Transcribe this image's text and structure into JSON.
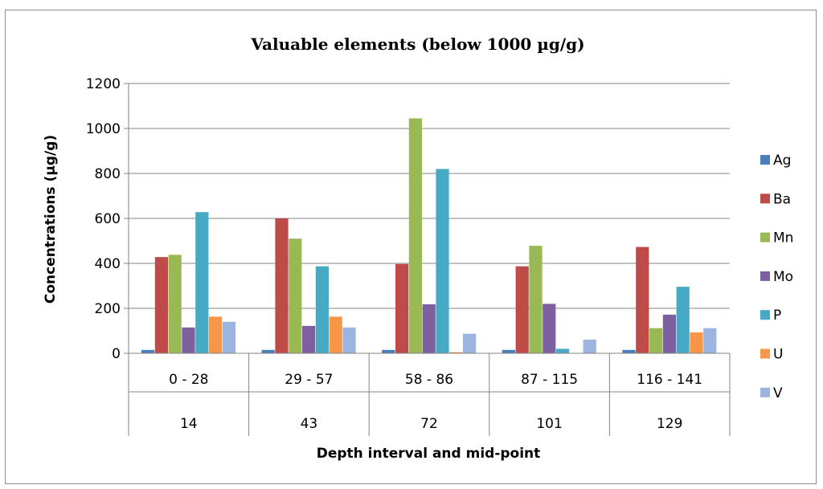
{
  "chart_data": {
    "type": "bar",
    "title": "Valuable elements (below 1000 µg/g)",
    "ylabel": "Concentrations (µg/g)",
    "xlabel": "Depth interval and mid-point",
    "ylim": [
      0,
      1200
    ],
    "yticks": [
      0,
      200,
      400,
      600,
      800,
      1000,
      1200
    ],
    "grid": true,
    "legend_position": "right",
    "categories": [
      "0 - 28",
      "29 - 57",
      "58 - 86",
      "87 - 115",
      "116 - 141"
    ],
    "midpoints": [
      "14",
      "43",
      "72",
      "101",
      "129"
    ],
    "series": [
      {
        "name": "Ag",
        "color": "#4a7ebb",
        "values": [
          15,
          15,
          15,
          15,
          15
        ]
      },
      {
        "name": "Ba",
        "color": "#be4b48",
        "values": [
          428,
          600,
          397,
          387,
          473
        ]
      },
      {
        "name": "Mn",
        "color": "#98b954",
        "values": [
          438,
          510,
          1045,
          478,
          112
        ]
      },
      {
        "name": "Mo",
        "color": "#7d60a0",
        "values": [
          115,
          122,
          218,
          220,
          172
        ]
      },
      {
        "name": "P",
        "color": "#46aac5",
        "values": [
          628,
          387,
          820,
          20,
          296
        ]
      },
      {
        "name": "U",
        "color": "#f79646",
        "values": [
          163,
          163,
          5,
          0,
          93
        ]
      },
      {
        "name": "V",
        "color": "#9cb4e0",
        "values": [
          140,
          115,
          87,
          61,
          112
        ]
      }
    ]
  }
}
